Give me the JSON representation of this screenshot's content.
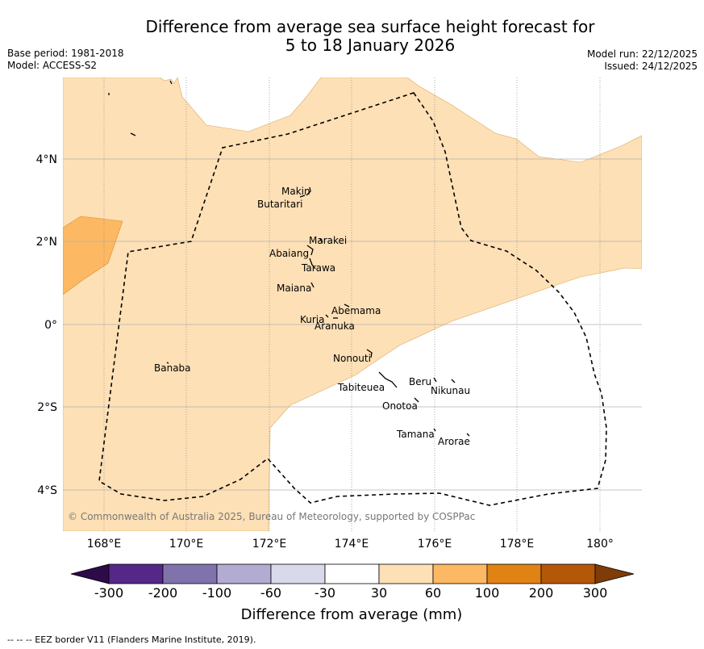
{
  "title": {
    "line1": "Difference from average sea surface height forecast for",
    "line2": "5 to 18 January 2026"
  },
  "meta": {
    "base_period": "Base period: 1981-2018",
    "model": "Model: ACCESS-S2",
    "model_run": "Model run: 22/12/2025",
    "issued": "Issued: 24/12/2025"
  },
  "axes": {
    "lon_ticks": [
      "168°E",
      "170°E",
      "172°E",
      "174°E",
      "176°E",
      "178°E",
      "180°"
    ],
    "lat_ticks": [
      "4°N",
      "2°N",
      "0°",
      "2°S",
      "4°S"
    ]
  },
  "places": [
    "Makin",
    "Butaritari",
    "Marakei",
    "Abaiang",
    "Tarawa",
    "Maiana",
    "Abemama",
    "Kuria",
    "Aranuka",
    "Nonouti",
    "Banaba",
    "Tabiteuea",
    "Beru",
    "Nikunau",
    "Onotoa",
    "Tamana",
    "Arorae"
  ],
  "copyright": "© Commonwealth of Australia 2025, Bureau of Meteorology, supported by COSPPac",
  "colorbar": {
    "ticks": [
      "-300",
      "-200",
      "-100",
      "-60",
      "-30",
      "30",
      "60",
      "100",
      "200",
      "300"
    ],
    "colors": [
      "#2d0b48",
      "#542788",
      "#8073ac",
      "#b2abd2",
      "#d8daeb",
      "#ffffff",
      "#fee0b6",
      "#fdb863",
      "#e08214",
      "#b35806",
      "#7f3b08"
    ],
    "title": "Difference from average (mm)"
  },
  "footer": "--  --  -- EEZ border V11 (Flanders Marine Institute, 2019).",
  "colors": {
    "light_orange": "#fee0b6",
    "medium_orange": "#fdb863",
    "grid": "#b0b0b0"
  }
}
